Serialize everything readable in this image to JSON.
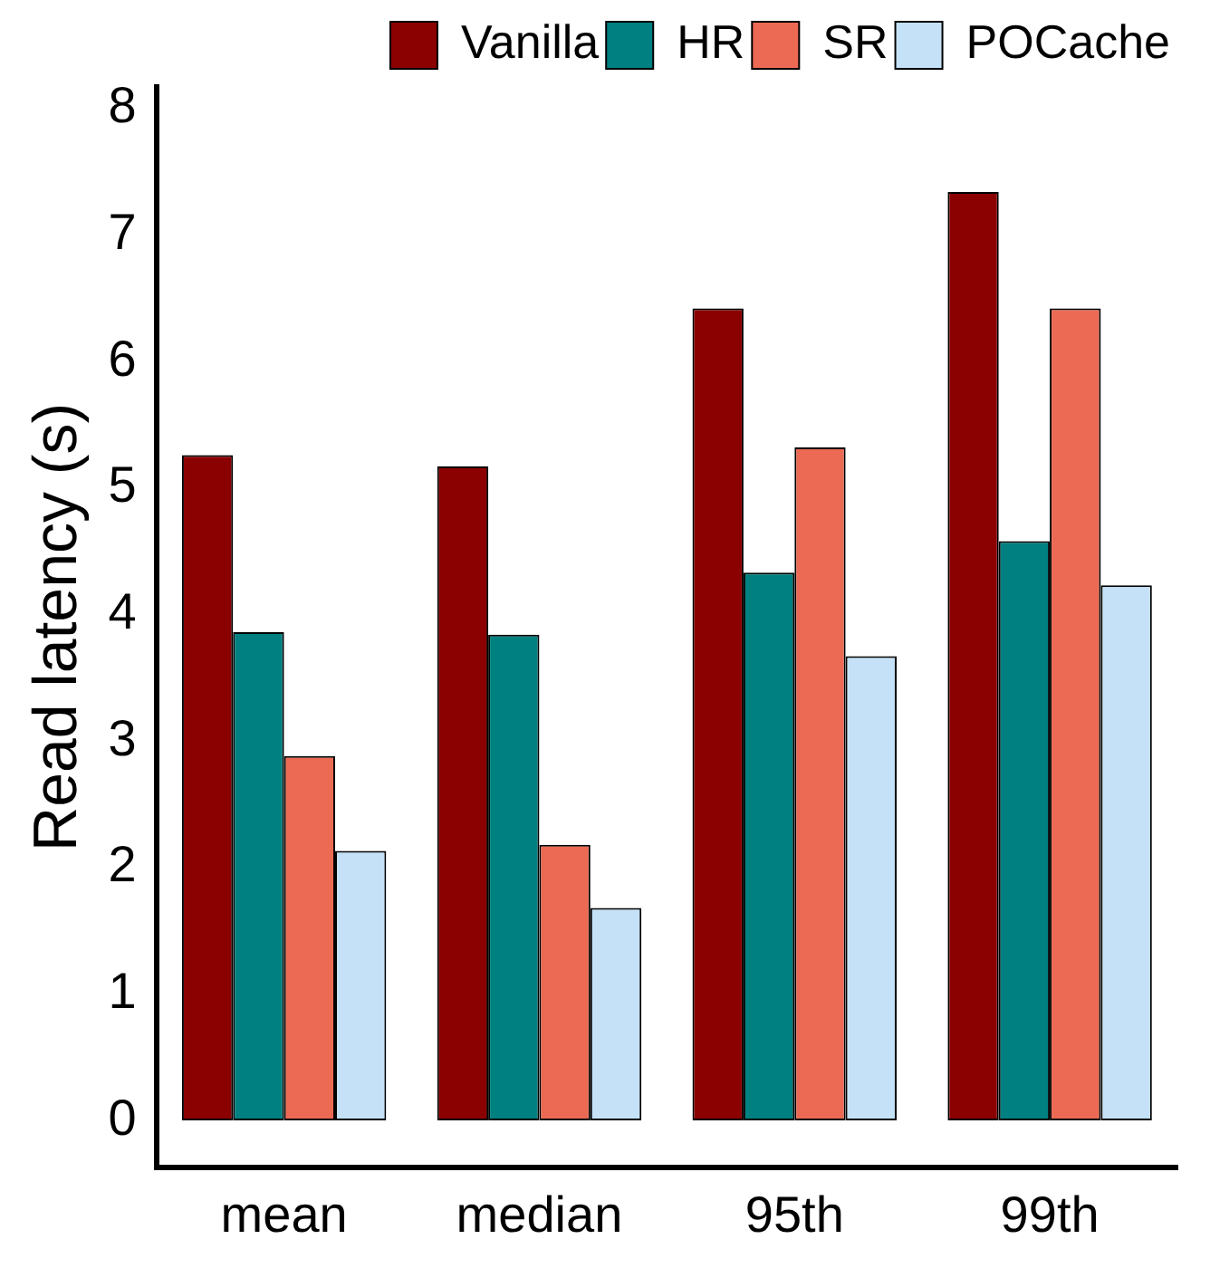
{
  "chart_data": {
    "type": "bar",
    "ylabel": "Read latency (s)",
    "categories": [
      "mean",
      "median",
      "95th",
      "99th"
    ],
    "series": [
      {
        "name": "Vanilla",
        "color": "#8b0000",
        "values": [
          5.26,
          5.17,
          6.42,
          7.34
        ]
      },
      {
        "name": "HR",
        "color": "#008080",
        "values": [
          3.86,
          3.84,
          4.33,
          4.58
        ]
      },
      {
        "name": "SR",
        "color": "#ec6a54",
        "values": [
          2.88,
          2.18,
          5.32,
          6.42
        ]
      },
      {
        "name": "POCache",
        "color": "#c4e1f8",
        "values": [
          2.13,
          1.68,
          3.67,
          4.23
        ]
      }
    ],
    "ylim": [
      -0.37,
      8.17
    ],
    "yticks": [
      0,
      1,
      2,
      3,
      4,
      5,
      6,
      7,
      8
    ],
    "grid": false,
    "legend": "top"
  }
}
